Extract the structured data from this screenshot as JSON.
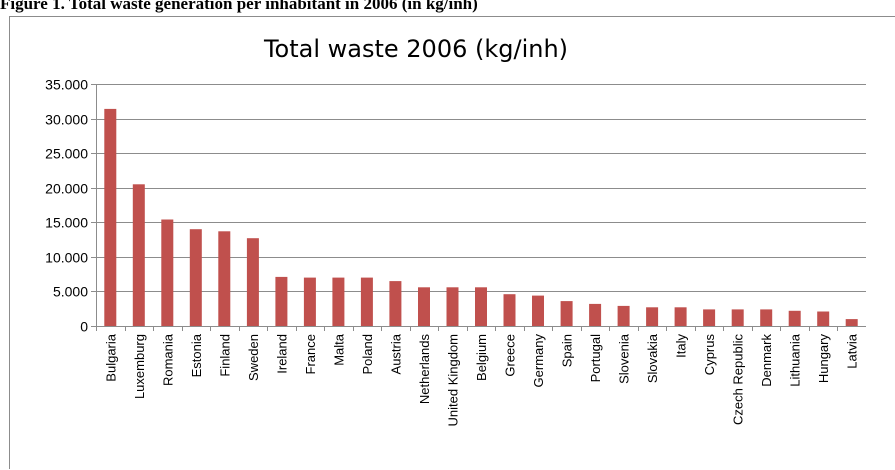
{
  "figure_caption": "Figure 1.      Total waste generation per inhabitant in 2006 (in kg/inh)",
  "chart_data": {
    "type": "bar",
    "title": "Total waste 2006 (kg/inh)",
    "xlabel": "",
    "ylabel": "",
    "ylim": [
      0,
      35000
    ],
    "yticks": [
      0,
      5000,
      10000,
      15000,
      20000,
      25000,
      30000,
      35000
    ],
    "ytick_labels": [
      "0",
      "5.000",
      "10.000",
      "15.000",
      "20.000",
      "25.000",
      "30.000",
      "35.000"
    ],
    "grid": true,
    "legend": "none",
    "bar_color": "#c0504d",
    "categories": [
      "Bulgaria",
      "Luxemburg",
      "Romania",
      "Estonia",
      "Finland",
      "Sweden",
      "Ireland",
      "France",
      "Malta",
      "Poland",
      "Austria",
      "Netherlands",
      "United Kingdom",
      "Belgium",
      "Greece",
      "Germany",
      "Spain",
      "Portugal",
      "Slovenia",
      "Slovakia",
      "Italy",
      "Cyprus",
      "Czech Republic",
      "Denmark",
      "Lithuania",
      "Hungary",
      "Latvia"
    ],
    "values": [
      31400,
      20500,
      15400,
      14000,
      13700,
      12700,
      7100,
      7000,
      7000,
      7000,
      6500,
      5600,
      5600,
      5600,
      4600,
      4400,
      3600,
      3200,
      2900,
      2700,
      2700,
      2400,
      2400,
      2400,
      2200,
      2100,
      1000
    ]
  }
}
